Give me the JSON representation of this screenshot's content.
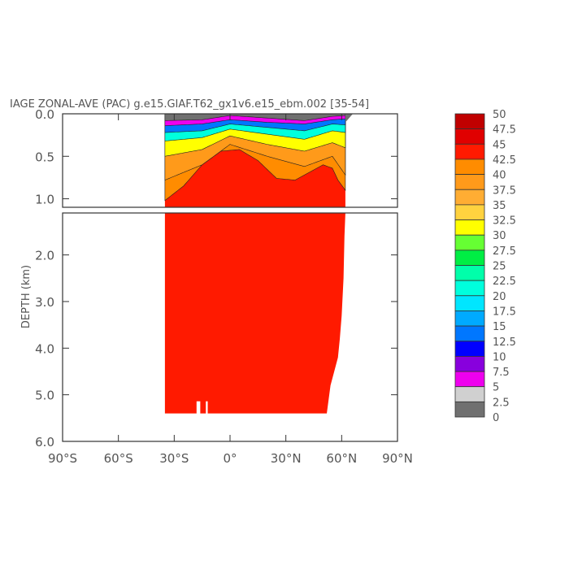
{
  "chart_data": {
    "type": "heatmap",
    "title": "IAGE ZONAL-AVE (PAC) g.e15.GIAF.T62_gx1v6.e15_ebm.002 [35-54]",
    "ylabel": "DEPTH (km)",
    "xlabel": "",
    "x_tick_labels": [
      "90°S",
      "60°S",
      "30°S",
      "0°",
      "30°N",
      "60°N",
      "90°N"
    ],
    "x_tick_values": [
      -90,
      -60,
      -30,
      0,
      30,
      60,
      90
    ],
    "xlim": [
      -90,
      90
    ],
    "upper_panel": {
      "ylim": [
        0.0,
        1.1
      ],
      "y_tick_labels": [
        "0.0",
        "0.5",
        "1.0"
      ],
      "y_tick_values": [
        0.0,
        0.5,
        1.0
      ]
    },
    "lower_panel": {
      "ylim": [
        1.1,
        6.0
      ],
      "y_tick_labels": [
        "2.0",
        "3.0",
        "4.0",
        "5.0",
        "6.0"
      ],
      "y_tick_values": [
        2.0,
        3.0,
        4.0,
        5.0,
        6.0
      ]
    },
    "colorbar": {
      "labels": [
        "50",
        "47.5",
        "45",
        "42.5",
        "40",
        "37.5",
        "35",
        "32.5",
        "30",
        "27.5",
        "25",
        "22.5",
        "20",
        "17.5",
        "15",
        "12.5",
        "10",
        "7.5",
        "5",
        "2.5",
        "0"
      ],
      "colors": [
        "#c00000",
        "#e00000",
        "#ff1a00",
        "#ff8c00",
        "#ff9a1a",
        "#ffad33",
        "#ffd23f",
        "#ffff00",
        "#66ff33",
        "#00ee44",
        "#00ffaa",
        "#00ffdd",
        "#00e6ff",
        "#00aaff",
        "#0077ff",
        "#0000ff",
        "#8800dd",
        "#ee00ee",
        "#d0d0d0",
        "#707070"
      ]
    },
    "data_extent": {
      "lat_min": -35,
      "deep_red_max_value": 45,
      "lower_panel_east_boundary": [
        {
          "depth": 1.1,
          "lat": 62
        },
        {
          "depth": 1.6,
          "lat": 61.5
        },
        {
          "depth": 2.5,
          "lat": 61
        },
        {
          "depth": 3.3,
          "lat": 60
        },
        {
          "depth": 3.8,
          "lat": 59
        },
        {
          "depth": 4.2,
          "lat": 58
        },
        {
          "depth": 4.5,
          "lat": 56
        },
        {
          "depth": 4.8,
          "lat": 54
        },
        {
          "depth": 5.4,
          "lat": 52
        }
      ],
      "bottom_depth": 5.4
    },
    "upper_panel_contours": [
      {
        "value": 2.5,
        "color": "#707070",
        "depth_at": [
          [
            -35,
            0.08
          ],
          [
            -15,
            0.07
          ],
          [
            0,
            0.02
          ],
          [
            20,
            0.05
          ],
          [
            40,
            0.08
          ],
          [
            55,
            0.03
          ],
          [
            62,
            0.02
          ]
        ]
      },
      {
        "value": 7.5,
        "color": "#ee00ee",
        "depth_at": [
          [
            -35,
            0.14
          ],
          [
            -15,
            0.12
          ],
          [
            0,
            0.07
          ],
          [
            20,
            0.1
          ],
          [
            40,
            0.12
          ],
          [
            55,
            0.07
          ],
          [
            62,
            0.06
          ]
        ]
      },
      {
        "value": 15,
        "color": "#0077ff",
        "depth_at": [
          [
            -35,
            0.22
          ],
          [
            -15,
            0.2
          ],
          [
            0,
            0.12
          ],
          [
            20,
            0.16
          ],
          [
            40,
            0.2
          ],
          [
            55,
            0.12
          ],
          [
            62,
            0.13
          ]
        ]
      },
      {
        "value": 22.5,
        "color": "#00ffdd",
        "depth_at": [
          [
            -35,
            0.32
          ],
          [
            -15,
            0.28
          ],
          [
            0,
            0.18
          ],
          [
            20,
            0.24
          ],
          [
            40,
            0.3
          ],
          [
            55,
            0.2
          ],
          [
            62,
            0.22
          ]
        ]
      },
      {
        "value": 32.5,
        "color": "#ffff00",
        "depth_at": [
          [
            -35,
            0.5
          ],
          [
            -15,
            0.42
          ],
          [
            0,
            0.26
          ],
          [
            20,
            0.36
          ],
          [
            40,
            0.44
          ],
          [
            55,
            0.34
          ],
          [
            62,
            0.4
          ]
        ]
      },
      {
        "value": 40,
        "color": "#ff9a1a",
        "depth_at": [
          [
            -35,
            0.78
          ],
          [
            -15,
            0.6
          ],
          [
            0,
            0.36
          ],
          [
            20,
            0.5
          ],
          [
            40,
            0.62
          ],
          [
            55,
            0.5
          ],
          [
            62,
            0.72
          ]
        ]
      },
      {
        "value": 42.5,
        "color": "#ff8c00",
        "depth_at": [
          [
            -35,
            1.02
          ],
          [
            -25,
            0.85
          ],
          [
            -15,
            0.6
          ],
          [
            -5,
            0.44
          ],
          [
            5,
            0.42
          ],
          [
            15,
            0.55
          ],
          [
            25,
            0.76
          ],
          [
            35,
            0.78
          ],
          [
            45,
            0.66
          ],
          [
            50,
            0.6
          ],
          [
            55,
            0.64
          ],
          [
            58,
            0.78
          ],
          [
            62,
            0.9
          ]
        ]
      }
    ]
  }
}
